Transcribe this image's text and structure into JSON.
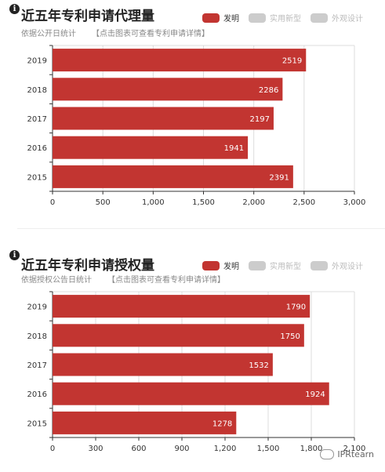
{
  "chart_data": [
    {
      "type": "bar",
      "orientation": "horizontal",
      "title": "近五年专利申请代理量",
      "subtitle": "依据公开日统计",
      "link_text": "【点击图表可查看专利申请详情】",
      "legend": [
        "发明",
        "实用新型",
        "外观设计"
      ],
      "legend_colors": [
        "#c23531",
        "#cccccc",
        "#cccccc"
      ],
      "legend_active": [
        true,
        false,
        false
      ],
      "categories": [
        "2019",
        "2018",
        "2017",
        "2016",
        "2015"
      ],
      "values": [
        2519,
        2286,
        2197,
        1941,
        2391
      ],
      "value_labels": [
        "2519",
        "2286",
        "2197",
        "1941",
        "2391"
      ],
      "xlim": [
        0,
        3000
      ],
      "xticks": [
        0,
        500,
        1000,
        1500,
        2000,
        2500,
        3000
      ],
      "xtick_labels": [
        "0",
        "500",
        "1,000",
        "1,500",
        "2,000",
        "2,500",
        "3,000"
      ],
      "grid": true,
      "bar_color": "#c23531"
    },
    {
      "type": "bar",
      "orientation": "horizontal",
      "title": "近五年专利申请授权量",
      "subtitle": "依据授权公告日统计",
      "link_text": "【点击图表可查看专利申请详情】",
      "legend": [
        "发明",
        "实用新型",
        "外观设计"
      ],
      "legend_colors": [
        "#c23531",
        "#cccccc",
        "#cccccc"
      ],
      "legend_active": [
        true,
        false,
        false
      ],
      "categories": [
        "2019",
        "2018",
        "2017",
        "2016",
        "2015"
      ],
      "values": [
        1790,
        1750,
        1532,
        1924,
        1278
      ],
      "value_labels": [
        "1790",
        "1750",
        "1532",
        "1924",
        "1278"
      ],
      "xlim": [
        0,
        2100
      ],
      "xticks": [
        0,
        300,
        600,
        900,
        1200,
        1500,
        1800,
        2100
      ],
      "xtick_labels": [
        "0",
        "300",
        "600",
        "900",
        "1,200",
        "1,500",
        "1,800",
        "2,100"
      ],
      "grid": true,
      "bar_color": "#c23531"
    }
  ],
  "watermark": "IPRtearn"
}
